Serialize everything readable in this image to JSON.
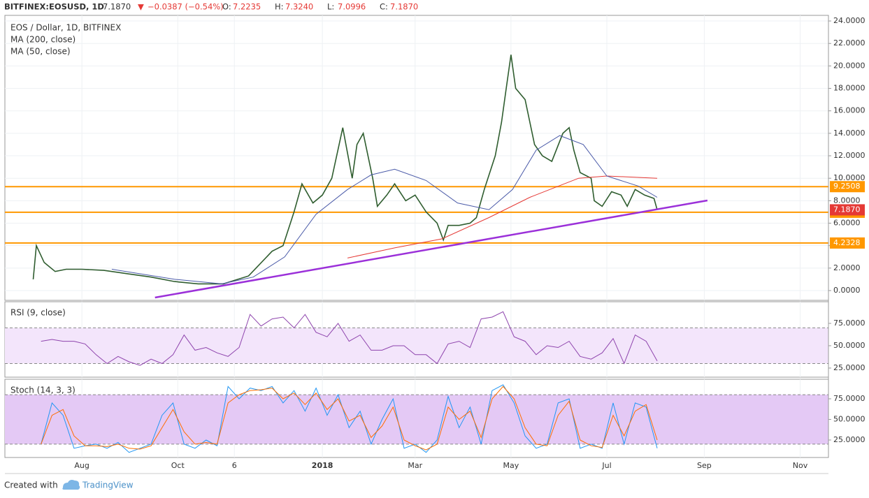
{
  "header": {
    "symbol": "BITFINEX:EOSUSD, 1D",
    "last": "7.1870",
    "arrow": "▼",
    "change": "−0.0387 (−0.54%)",
    "ohlc": [
      {
        "key": "O:",
        "value": "7.2235"
      },
      {
        "key": "H:",
        "value": "7.3240"
      },
      {
        "key": "L:",
        "value": "7.0996"
      },
      {
        "key": "C:",
        "value": "7.1870"
      }
    ]
  },
  "chart_data": [
    {
      "type": "line",
      "grid": true,
      "xlim": [
        -18,
        506
      ],
      "xticks": [
        {
          "value": 31,
          "label": "Aug"
        },
        {
          "value": 92,
          "label": "Oct"
        },
        {
          "value": 128,
          "label": "6"
        },
        {
          "value": 184,
          "label": "2018"
        },
        {
          "value": 243,
          "label": "Mar"
        },
        {
          "value": 304,
          "label": "May"
        },
        {
          "value": 365,
          "label": "Jul"
        },
        {
          "value": 427,
          "label": "Sep"
        },
        {
          "value": 488,
          "label": "Nov"
        }
      ],
      "ylim": [
        -0.87,
        24.5
      ],
      "yticks": [
        {
          "value": 0,
          "label": "0.0000"
        },
        {
          "value": 2,
          "label": "2.0000"
        },
        {
          "value": 4,
          "label": "4.0000"
        },
        {
          "value": 6,
          "label": "6.0000"
        },
        {
          "value": 8,
          "label": "8.0000"
        },
        {
          "value": 10,
          "label": "10.0000"
        },
        {
          "value": 12,
          "label": "12.0000"
        },
        {
          "value": 14,
          "label": "14.0000"
        },
        {
          "value": 16,
          "label": "16.0000"
        },
        {
          "value": 18,
          "label": "18.0000"
        },
        {
          "value": 20,
          "label": "20.0000"
        },
        {
          "value": 22,
          "label": "22.0000"
        },
        {
          "value": 24,
          "label": "24.0000"
        }
      ],
      "series": [
        {
          "name": "EOS / Dollar, 1D, BITFINEX",
          "color": "#2f5d2f",
          "x": [
            0,
            2,
            7,
            14,
            21,
            31,
            45,
            60,
            75,
            90,
            105,
            121,
            137,
            152,
            159,
            166,
            171,
            178,
            184,
            190,
            197,
            203,
            206,
            210,
            216,
            219,
            225,
            230,
            237,
            243,
            250,
            257,
            261,
            264,
            271,
            278,
            282,
            287,
            294,
            298,
            301,
            304,
            307,
            313,
            319,
            324,
            330,
            337,
            341,
            344,
            348,
            355,
            357,
            362,
            368,
            374,
            378,
            383,
            389,
            395,
            397
          ],
          "values": [
            1.0,
            4.0,
            2.5,
            1.7,
            1.9,
            1.9,
            1.8,
            1.5,
            1.2,
            0.8,
            0.6,
            0.6,
            1.3,
            3.5,
            4.0,
            7.0,
            9.5,
            7.8,
            8.5,
            10.0,
            14.5,
            10.0,
            13.0,
            14.0,
            10.0,
            7.5,
            8.5,
            9.5,
            8.0,
            8.5,
            7.0,
            6.0,
            4.5,
            5.8,
            5.8,
            6.0,
            6.5,
            9.0,
            12.0,
            15.0,
            18.0,
            21.0,
            18.0,
            17.0,
            13.0,
            12.0,
            11.5,
            14.0,
            14.5,
            12.5,
            10.5,
            10.0,
            8.0,
            7.5,
            8.8,
            8.5,
            7.5,
            9.0,
            8.5,
            8.2,
            7.187
          ]
        },
        {
          "name": "MA (200, close)",
          "color": "#e53935",
          "x": [
            200,
            230,
            260,
            290,
            316,
            347,
            365,
            397
          ],
          "values": [
            2.9,
            3.8,
            4.6,
            6.5,
            8.3,
            10.0,
            10.2,
            10.0
          ]
        },
        {
          "name": "MA (50, close)",
          "color": "#4a5aa8",
          "x": [
            50,
            90,
            120,
            140,
            160,
            180,
            200,
            215,
            230,
            250,
            270,
            290,
            305,
            320,
            335,
            350,
            365,
            385,
            397
          ],
          "values": [
            1.9,
            1.0,
            0.6,
            1.2,
            3.0,
            6.8,
            9.0,
            10.3,
            10.8,
            9.8,
            7.8,
            7.2,
            9.0,
            12.5,
            13.8,
            13.0,
            10.2,
            9.3,
            8.3
          ]
        }
      ],
      "levels": [
        9.2508,
        6.9702,
        4.2328
      ],
      "level_color": "#ff9800",
      "last_price": {
        "value": 7.187,
        "label": "7.1870",
        "color": "#e53935"
      },
      "trendline": {
        "x": [
          77.5,
          429
        ],
        "values": [
          -0.62,
          8.02
        ],
        "color": "#9b30d9"
      }
    },
    {
      "type": "line",
      "title": "RSI (9, close)",
      "xlim": [
        -18,
        506
      ],
      "ylim": [
        14.8,
        99.2
      ],
      "yticks": [
        {
          "value": 25,
          "label": "25.0000"
        },
        {
          "value": 50,
          "label": "50.0000"
        },
        {
          "value": 75,
          "label": "75.0000"
        }
      ],
      "band": [
        30,
        70
      ],
      "band_color": "#f3e5fb",
      "series": [
        {
          "color": "#8e44ad",
          "x": [
            5,
            12,
            19,
            26,
            33,
            40,
            47,
            54,
            61,
            68,
            75,
            82,
            89,
            96,
            103,
            110,
            117,
            124,
            131,
            138,
            145,
            152,
            159,
            166,
            173,
            180,
            187,
            194,
            201,
            208,
            215,
            222,
            229,
            236,
            243,
            250,
            257,
            264,
            271,
            278,
            285,
            292,
            299,
            306,
            313,
            320,
            327,
            334,
            341,
            348,
            355,
            362,
            369,
            376,
            383,
            390,
            397
          ],
          "values": [
            55,
            57,
            55,
            55,
            52,
            40,
            30,
            38,
            32,
            28,
            35,
            30,
            40,
            62,
            45,
            48,
            42,
            38,
            48,
            85,
            72,
            80,
            82,
            70,
            85,
            65,
            60,
            75,
            55,
            62,
            45,
            45,
            50,
            50,
            40,
            40,
            30,
            52,
            55,
            48,
            80,
            82,
            88,
            60,
            55,
            40,
            50,
            48,
            55,
            38,
            35,
            42,
            58,
            30,
            62,
            55,
            33
          ]
        }
      ]
    },
    {
      "type": "line",
      "title": "Stoch (14, 3, 3)",
      "xlim": [
        -18,
        506
      ],
      "ylim": [
        3.8,
        98.7
      ],
      "yticks": [
        {
          "value": 25,
          "label": "25.0000"
        },
        {
          "value": 50,
          "label": "50.0000"
        },
        {
          "value": 75,
          "label": "75.0000"
        }
      ],
      "band": [
        20,
        80
      ],
      "band_color": "#e4c9f5",
      "series": [
        {
          "color": "#2196f3",
          "x": [
            5,
            12,
            19,
            26,
            33,
            40,
            47,
            54,
            61,
            68,
            75,
            82,
            89,
            96,
            103,
            110,
            117,
            124,
            131,
            138,
            145,
            152,
            159,
            166,
            173,
            180,
            187,
            194,
            201,
            208,
            215,
            222,
            229,
            236,
            243,
            250,
            257,
            264,
            271,
            278,
            285,
            292,
            299,
            306,
            313,
            320,
            327,
            334,
            341,
            348,
            355,
            362,
            369,
            376,
            383,
            390,
            397
          ],
          "values": [
            20,
            70,
            55,
            15,
            18,
            20,
            15,
            22,
            10,
            15,
            20,
            55,
            70,
            20,
            15,
            25,
            18,
            90,
            75,
            88,
            85,
            90,
            70,
            85,
            60,
            88,
            55,
            80,
            40,
            60,
            20,
            50,
            75,
            15,
            20,
            10,
            25,
            78,
            40,
            65,
            20,
            85,
            92,
            70,
            30,
            15,
            20,
            70,
            75,
            15,
            20,
            15,
            70,
            20,
            70,
            65,
            15
          ]
        },
        {
          "color": "#ff6d00",
          "x": [
            5,
            12,
            19,
            26,
            33,
            40,
            47,
            54,
            61,
            68,
            75,
            82,
            89,
            96,
            103,
            110,
            117,
            124,
            131,
            138,
            145,
            152,
            159,
            166,
            173,
            180,
            187,
            194,
            201,
            208,
            215,
            222,
            229,
            236,
            243,
            250,
            257,
            264,
            271,
            278,
            285,
            292,
            299,
            306,
            313,
            320,
            327,
            334,
            341,
            348,
            355,
            362,
            369,
            376,
            383,
            390,
            397
          ],
          "values": [
            20,
            55,
            62,
            30,
            18,
            18,
            17,
            20,
            15,
            14,
            18,
            40,
            62,
            35,
            20,
            22,
            20,
            70,
            80,
            85,
            86,
            88,
            75,
            82,
            68,
            82,
            62,
            75,
            48,
            55,
            28,
            42,
            65,
            25,
            18,
            13,
            20,
            65,
            50,
            60,
            28,
            75,
            90,
            75,
            40,
            20,
            18,
            55,
            72,
            25,
            18,
            16,
            55,
            30,
            60,
            68,
            25
          ]
        }
      ]
    }
  ],
  "footer": {
    "created": "Created with",
    "brand": "TradingView"
  }
}
